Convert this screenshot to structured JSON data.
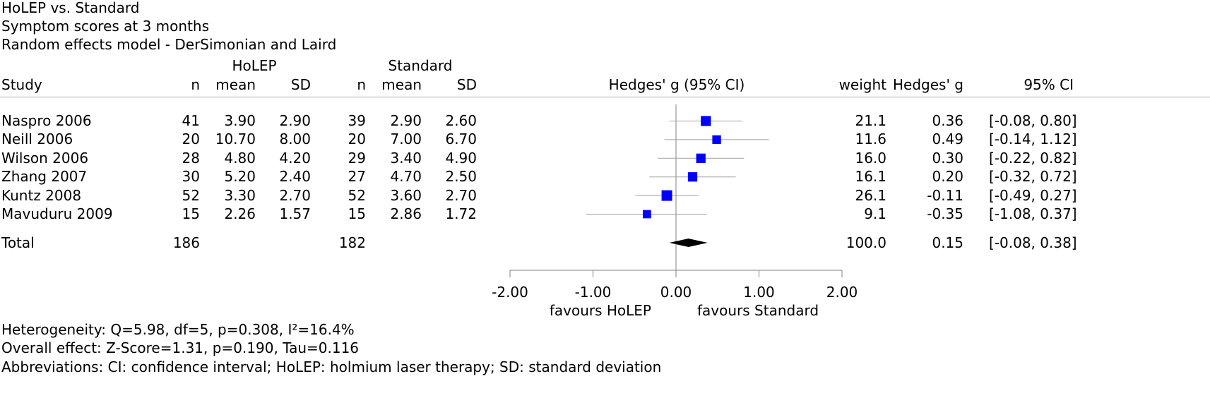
{
  "header": {
    "title": "HoLEP vs. Standard",
    "subtitle": "Symptom scores at 3 months",
    "model": "Random effects model - DerSimonian and Laird"
  },
  "columns": {
    "group1": "HoLEP",
    "group2": "Standard",
    "study": "Study",
    "n1": "n",
    "mean1": "mean",
    "sd1": "SD",
    "n2": "n",
    "mean2": "mean",
    "sd2": "SD",
    "effect": "Hedges' g (95% CI)",
    "weight": "weight",
    "g": "Hedges' g",
    "ci": "95% CI"
  },
  "chart_data": {
    "type": "forest",
    "xlim": [
      -2.0,
      2.0
    ],
    "xticks": [
      "-2.00",
      "-1.00",
      "0.00",
      "1.00",
      "2.00"
    ],
    "xtick_values": [
      -2.0,
      -1.0,
      0.0,
      1.0,
      2.0
    ],
    "favours_left": "favours HoLEP",
    "favours_right": "favours Standard",
    "studies": [
      {
        "study": "Naspro 2006",
        "n1": "41",
        "mean1": "3.90",
        "sd1": "2.90",
        "n2": "39",
        "mean2": "2.90",
        "sd2": "2.60",
        "weight": "21.1",
        "g": "0.36",
        "ci": "[-0.08, 0.80]",
        "g_val": 0.36,
        "lo": -0.08,
        "hi": 0.8,
        "w": 21.1
      },
      {
        "study": "Neill 2006",
        "n1": "20",
        "mean1": "10.70",
        "sd1": "8.00",
        "n2": "20",
        "mean2": "7.00",
        "sd2": "6.70",
        "weight": "11.6",
        "g": "0.49",
        "ci": "[-0.14, 1.12]",
        "g_val": 0.49,
        "lo": -0.14,
        "hi": 1.12,
        "w": 11.6
      },
      {
        "study": "Wilson 2006",
        "n1": "28",
        "mean1": "4.80",
        "sd1": "4.20",
        "n2": "29",
        "mean2": "3.40",
        "sd2": "4.90",
        "weight": "16.0",
        "g": "0.30",
        "ci": "[-0.22, 0.82]",
        "g_val": 0.3,
        "lo": -0.22,
        "hi": 0.82,
        "w": 16.0
      },
      {
        "study": "Zhang 2007",
        "n1": "30",
        "mean1": "5.20",
        "sd1": "2.40",
        "n2": "27",
        "mean2": "4.70",
        "sd2": "2.50",
        "weight": "16.1",
        "g": "0.20",
        "ci": "[-0.32, 0.72]",
        "g_val": 0.2,
        "lo": -0.32,
        "hi": 0.72,
        "w": 16.1
      },
      {
        "study": "Kuntz 2008",
        "n1": "52",
        "mean1": "3.30",
        "sd1": "2.70",
        "n2": "52",
        "mean2": "3.60",
        "sd2": "2.70",
        "weight": "26.1",
        "g": "-0.11",
        "ci": "[-0.49, 0.27]",
        "g_val": -0.11,
        "lo": -0.49,
        "hi": 0.27,
        "w": 26.1
      },
      {
        "study": "Mavuduru 2009",
        "n1": "15",
        "mean1": "2.26",
        "sd1": "1.57",
        "n2": "15",
        "mean2": "2.86",
        "sd2": "1.72",
        "weight": "9.1",
        "g": "-0.35",
        "ci": "[-1.08, 0.37]",
        "g_val": -0.35,
        "lo": -1.08,
        "hi": 0.37,
        "w": 9.1
      }
    ],
    "total": {
      "study": "Total",
      "n1": "186",
      "n2": "182",
      "weight": "100.0",
      "g": "0.15",
      "ci": "[-0.08, 0.38]",
      "g_val": 0.15,
      "lo": -0.08,
      "hi": 0.38
    },
    "colors": {
      "marker": "#0000ff",
      "ci_line": "#a0a0a0",
      "diamond": "#000000",
      "axis": "#808080"
    }
  },
  "footer": {
    "heterogeneity": "Heterogeneity: Q=5.98, df=5, p=0.308, I²=16.4%",
    "overall": "Overall effect: Z-Score=1.31, p=0.190, Tau=0.116",
    "abbreviations": "Abbreviations: CI: confidence interval; HoLEP: holmium laser therapy; SD: standard deviation"
  }
}
